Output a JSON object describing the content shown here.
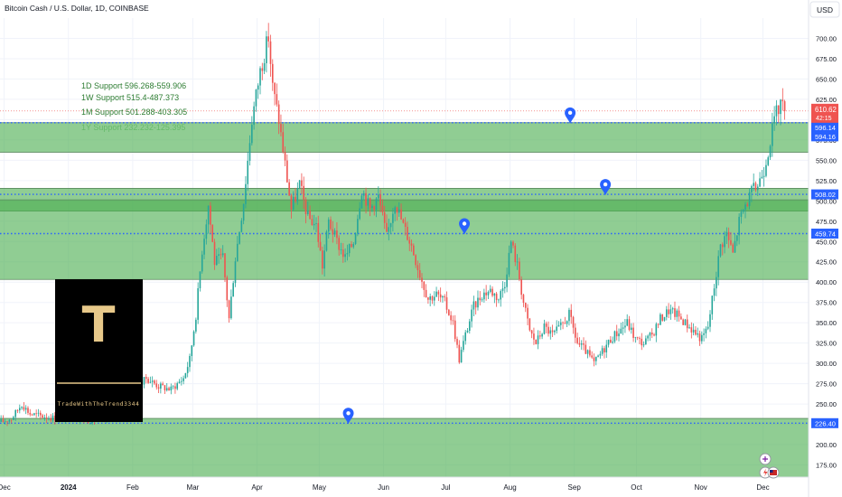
{
  "header": {
    "symbol_title": "Bitcoin Cash / U.S. Dollar, 1D, COINBASE",
    "currency": "USD"
  },
  "logo": {
    "letter": "T",
    "caption": "TradeWithTheTrend3344"
  },
  "colors": {
    "up": "#26a69a",
    "down": "#ef5350",
    "zone_fill": "#4caf50",
    "zone_text": "#2e7d32",
    "dotted_line": "#2962ff",
    "marker": "#2962ff",
    "price_badge": "#ef5350",
    "level_badge": "#2962ff",
    "logo_bg": "#000000",
    "logo_accent": "#e8c98a"
  },
  "chart_data": {
    "type": "candlestick",
    "title": "Bitcoin Cash / U.S. Dollar, 1D, COINBASE",
    "ylim": [
      160,
      725
    ],
    "y_ticks": [
      175,
      200,
      225,
      250,
      275,
      300,
      325,
      350,
      375,
      400,
      425,
      450,
      475,
      500,
      525,
      550,
      575,
      600,
      625,
      650,
      675,
      700
    ],
    "y_tick_labels": [
      "175.00",
      "200.00",
      "225.00",
      "250.00",
      "275.00",
      "300.00",
      "325.00",
      "350.00",
      "375.00",
      "400.00",
      "425.00",
      "450.00",
      "475.00",
      "500.00",
      "525.00",
      "550.00",
      "575.00",
      "600.00",
      "625.00",
      "650.00",
      "675.00",
      "700.00"
    ],
    "x_ticks": [
      {
        "label": "Dec",
        "day": 2
      },
      {
        "label": "2024",
        "day": 33
      },
      {
        "label": "Feb",
        "day": 64
      },
      {
        "label": "Mar",
        "day": 93
      },
      {
        "label": "Apr",
        "day": 124
      },
      {
        "label": "May",
        "day": 154
      },
      {
        "label": "Jun",
        "day": 185
      },
      {
        "label": "Jul",
        "day": 215
      },
      {
        "label": "Aug",
        "day": 246
      },
      {
        "label": "Sep",
        "day": 277
      },
      {
        "label": "Oct",
        "day": 307
      },
      {
        "label": "Nov",
        "day": 338
      },
      {
        "label": "Dec",
        "day": 368
      }
    ],
    "x_range_days": [
      0,
      390
    ],
    "price_anchors": [
      [
        0,
        228
      ],
      [
        5,
        232
      ],
      [
        10,
        250
      ],
      [
        14,
        238
      ],
      [
        20,
        235
      ],
      [
        28,
        232
      ],
      [
        35,
        236
      ],
      [
        42,
        230
      ],
      [
        50,
        232
      ],
      [
        56,
        240
      ],
      [
        60,
        250
      ],
      [
        64,
        262
      ],
      [
        70,
        282
      ],
      [
        76,
        272
      ],
      [
        82,
        268
      ],
      [
        88,
        282
      ],
      [
        91,
        305
      ],
      [
        94,
        360
      ],
      [
        97,
        440
      ],
      [
        100,
        495
      ],
      [
        103,
        425
      ],
      [
        107,
        430
      ],
      [
        110,
        355
      ],
      [
        113,
        430
      ],
      [
        117,
        500
      ],
      [
        121,
        600
      ],
      [
        125,
        660
      ],
      [
        129,
        702
      ],
      [
        131,
        640
      ],
      [
        134,
        600
      ],
      [
        137,
        545
      ],
      [
        140,
        490
      ],
      [
        144,
        520
      ],
      [
        148,
        480
      ],
      [
        152,
        470
      ],
      [
        155,
        420
      ],
      [
        158,
        475
      ],
      [
        162,
        450
      ],
      [
        166,
        430
      ],
      [
        170,
        450
      ],
      [
        174,
        515
      ],
      [
        178,
        490
      ],
      [
        182,
        505
      ],
      [
        186,
        455
      ],
      [
        190,
        500
      ],
      [
        194,
        470
      ],
      [
        198,
        445
      ],
      [
        202,
        410
      ],
      [
        206,
        380
      ],
      [
        210,
        385
      ],
      [
        214,
        375
      ],
      [
        218,
        350
      ],
      [
        221,
        305
      ],
      [
        224,
        335
      ],
      [
        228,
        370
      ],
      [
        232,
        385
      ],
      [
        236,
        390
      ],
      [
        240,
        380
      ],
      [
        243,
        400
      ],
      [
        246,
        450
      ],
      [
        249,
        420
      ],
      [
        252,
        375
      ],
      [
        255,
        340
      ],
      [
        258,
        325
      ],
      [
        262,
        345
      ],
      [
        266,
        335
      ],
      [
        270,
        345
      ],
      [
        274,
        360
      ],
      [
        278,
        325
      ],
      [
        282,
        315
      ],
      [
        286,
        300
      ],
      [
        290,
        315
      ],
      [
        294,
        330
      ],
      [
        298,
        340
      ],
      [
        302,
        350
      ],
      [
        306,
        330
      ],
      [
        310,
        325
      ],
      [
        314,
        335
      ],
      [
        318,
        355
      ],
      [
        322,
        365
      ],
      [
        326,
        360
      ],
      [
        330,
        350
      ],
      [
        334,
        340
      ],
      [
        338,
        330
      ],
      [
        341,
        345
      ],
      [
        344,
        395
      ],
      [
        347,
        445
      ],
      [
        350,
        460
      ],
      [
        353,
        435
      ],
      [
        356,
        475
      ],
      [
        359,
        495
      ],
      [
        362,
        510
      ],
      [
        365,
        520
      ],
      [
        368,
        540
      ],
      [
        371,
        575
      ],
      [
        373,
        600
      ],
      [
        376,
        622
      ],
      [
        378,
        610
      ]
    ],
    "current_price": 610.62,
    "countdown": "42:15",
    "support_levels": [
      {
        "name": "1D Support",
        "label": "1D Support 596.268-559.906",
        "upper": 596.268,
        "lower": 559.906
      },
      {
        "name": "1W Support",
        "label": "1W Support 515.4-487.373",
        "upper": 515.4,
        "lower": 487.373
      },
      {
        "name": "1M Support",
        "label": "1M Support 501.288-403.305",
        "upper": 501.288,
        "lower": 403.305
      },
      {
        "name": "1Y Support",
        "label": "1Y Support 232.232-125.395",
        "upper": 232.232,
        "lower": 125.395
      }
    ],
    "dotted_levels": [
      596.14,
      508.02,
      459.74,
      226.4
    ],
    "level_labels": [
      {
        "value": 596.14,
        "label": "596.14",
        "badge": "blue"
      },
      {
        "value": 594.16,
        "label": "594.16",
        "badge": "blue"
      },
      {
        "value": 508.02,
        "label": "508.02",
        "badge": "blue"
      },
      {
        "value": 459.74,
        "label": "459.74",
        "badge": "blue"
      },
      {
        "value": 226.4,
        "label": "226.40",
        "badge": "blue"
      }
    ],
    "markers": [
      {
        "day": 275,
        "value": 596.14
      },
      {
        "day": 292,
        "value": 508.02
      },
      {
        "day": 224,
        "value": 459.74
      },
      {
        "day": 168,
        "value": 226.4
      }
    ]
  }
}
